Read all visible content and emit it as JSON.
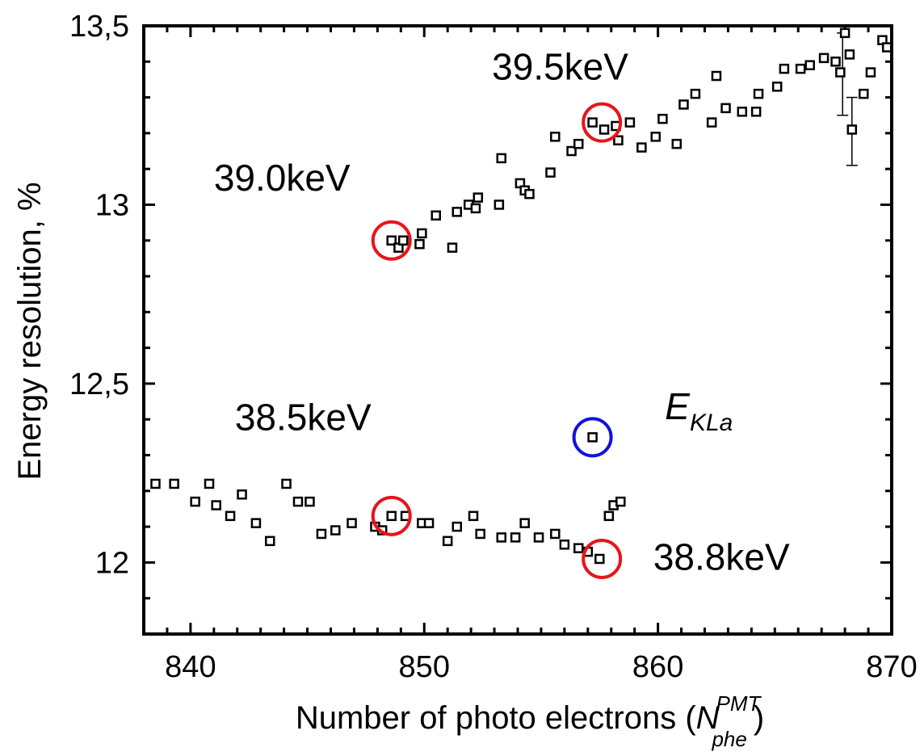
{
  "chart_data": {
    "type": "scatter",
    "xlabel": "Number of photo electrons (",
    "xlabel_symbol": "N",
    "xlabel_sup": "PMT",
    "xlabel_sub": "phe",
    "xlabel_close": ")",
    "ylabel": "Energy resolution, %",
    "xlim": [
      838,
      870
    ],
    "ylim": [
      11.8,
      13.5
    ],
    "x_ticks": [
      840,
      850,
      860,
      870
    ],
    "x_tick_labels": [
      "840",
      "850",
      "860",
      "870"
    ],
    "y_ticks": [
      12.0,
      12.5,
      13.0,
      13.5
    ],
    "y_tick_labels": [
      "12",
      "12,5",
      "13",
      "13,5"
    ],
    "marker": "open-square",
    "marker_color": "#000000",
    "grid": false,
    "series": [
      {
        "points": [
          [
            848.6,
            12.9
          ],
          [
            848.9,
            12.88
          ],
          [
            849.1,
            12.9
          ],
          [
            849.8,
            12.89
          ],
          [
            849.9,
            12.92
          ],
          [
            850.5,
            12.97
          ],
          [
            851.2,
            12.88
          ],
          [
            851.4,
            12.98
          ],
          [
            851.9,
            13.0
          ],
          [
            852.2,
            12.99
          ],
          [
            852.3,
            13.02
          ],
          [
            853.2,
            13.0
          ],
          [
            853.3,
            13.13
          ],
          [
            854.1,
            13.06
          ],
          [
            854.3,
            13.04
          ],
          [
            854.5,
            13.03
          ],
          [
            855.4,
            13.09
          ],
          [
            855.6,
            13.19
          ],
          [
            856.3,
            13.15
          ],
          [
            856.6,
            13.17
          ],
          [
            857.2,
            13.23
          ],
          [
            857.7,
            13.21
          ],
          [
            858.2,
            13.22
          ],
          [
            858.3,
            13.18
          ],
          [
            858.8,
            13.23
          ],
          [
            859.3,
            13.16
          ],
          [
            859.9,
            13.19
          ],
          [
            860.2,
            13.24
          ],
          [
            860.8,
            13.17
          ],
          [
            861.1,
            13.28
          ],
          [
            861.6,
            13.31
          ],
          [
            862.3,
            13.23
          ],
          [
            862.5,
            13.36
          ],
          [
            862.9,
            13.27
          ],
          [
            863.6,
            13.26
          ],
          [
            864.2,
            13.26
          ],
          [
            864.3,
            13.31
          ],
          [
            865.1,
            13.33
          ],
          [
            865.4,
            13.38
          ],
          [
            866.1,
            13.38
          ],
          [
            866.5,
            13.39
          ],
          [
            867.1,
            13.41
          ],
          [
            867.6,
            13.4
          ],
          [
            867.8,
            13.37
          ],
          [
            868.0,
            13.48
          ],
          [
            868.2,
            13.42
          ],
          [
            868.3,
            13.21
          ],
          [
            868.8,
            13.31
          ],
          [
            869.1,
            13.37
          ],
          [
            869.6,
            13.46
          ],
          [
            869.8,
            13.44
          ],
          [
            838.5,
            12.22
          ],
          [
            839.3,
            12.22
          ],
          [
            840.2,
            12.17
          ],
          [
            840.8,
            12.22
          ],
          [
            841.1,
            12.16
          ],
          [
            841.7,
            12.13
          ],
          [
            842.2,
            12.19
          ],
          [
            842.8,
            12.11
          ],
          [
            843.4,
            12.06
          ],
          [
            844.1,
            12.22
          ],
          [
            844.6,
            12.17
          ],
          [
            845.1,
            12.17
          ],
          [
            845.6,
            12.08
          ],
          [
            846.2,
            12.09
          ],
          [
            846.9,
            12.11
          ],
          [
            847.9,
            12.1
          ],
          [
            848.2,
            12.09
          ],
          [
            848.6,
            12.13
          ],
          [
            849.2,
            12.13
          ],
          [
            849.9,
            12.11
          ],
          [
            850.2,
            12.11
          ],
          [
            851.0,
            12.06
          ],
          [
            851.4,
            12.1
          ],
          [
            852.1,
            12.13
          ],
          [
            852.4,
            12.08
          ],
          [
            853.3,
            12.07
          ],
          [
            853.9,
            12.07
          ],
          [
            854.3,
            12.11
          ],
          [
            854.9,
            12.07
          ],
          [
            855.6,
            12.08
          ],
          [
            856.0,
            12.05
          ],
          [
            856.6,
            12.04
          ],
          [
            857.0,
            12.03
          ],
          [
            857.5,
            12.01
          ],
          [
            857.9,
            12.13
          ],
          [
            858.1,
            12.16
          ],
          [
            858.4,
            12.17
          ],
          [
            857.2,
            12.35
          ]
        ]
      }
    ],
    "error_bars": [
      {
        "x": 867.9,
        "y": 13.37,
        "low": 13.25,
        "high": 13.48
      },
      {
        "x": 868.3,
        "y": 13.21,
        "low": 13.11,
        "high": 13.3
      }
    ],
    "highlights": [
      {
        "x": 848.6,
        "y": 12.9,
        "color": "#e8141b"
      },
      {
        "x": 857.6,
        "y": 13.23,
        "color": "#e8141b"
      },
      {
        "x": 848.6,
        "y": 12.13,
        "color": "#e8141b"
      },
      {
        "x": 857.6,
        "y": 12.01,
        "color": "#e8141b"
      },
      {
        "x": 857.2,
        "y": 12.35,
        "color": "#1111dd"
      }
    ],
    "annotations": [
      {
        "text": "39.5keV",
        "x": 852.9,
        "y": 13.35
      },
      {
        "text": "39.0keV",
        "x": 841.0,
        "y": 13.04
      },
      {
        "text": "38.5keV",
        "x": 841.9,
        "y": 12.37
      },
      {
        "text": "38.8keV",
        "x": 859.8,
        "y": 11.98
      }
    ],
    "special_label": {
      "text": "E",
      "sub": "KLa",
      "x": 860.3,
      "y": 12.4
    }
  }
}
